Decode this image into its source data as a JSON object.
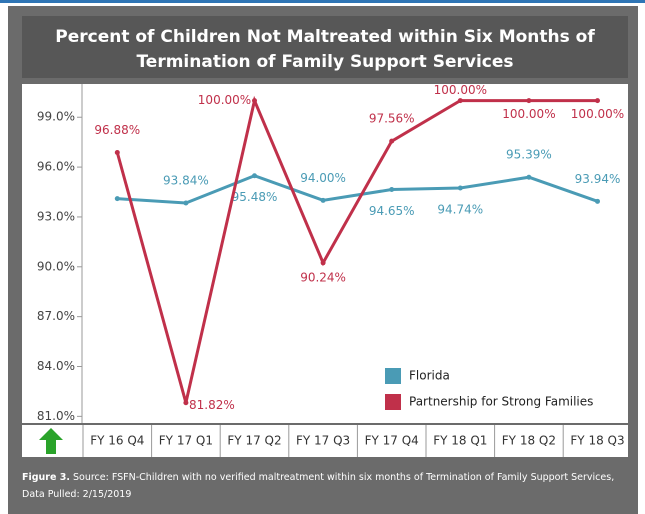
{
  "chart_data": {
    "type": "line",
    "title": [
      "Percent of Children Not Maltreated within Six Months of",
      "Termination of Family Support Services"
    ],
    "categories": [
      "FY 16 Q4",
      "FY 17 Q1",
      "FY 17 Q2",
      "FY 17 Q3",
      "FY 17 Q4",
      "FY 18 Q1",
      "FY 18 Q2",
      "FY 18 Q3"
    ],
    "series": [
      {
        "name": "Florida",
        "color": "#4a9bb5",
        "values": [
          94.1,
          93.84,
          95.48,
          94.0,
          94.65,
          94.74,
          95.39,
          93.94
        ],
        "value_labels": [
          null,
          "93.84%",
          "95.48%",
          "94.00%",
          "94.65%",
          "94.74%",
          "95.39%",
          "93.94%"
        ]
      },
      {
        "name": "Partnership for Strong Families",
        "color": "#c0304a",
        "values": [
          96.88,
          81.82,
          100,
          90.24,
          97.56,
          100,
          100,
          100
        ],
        "value_labels": [
          "96.88%",
          "81.82%",
          "100.00%",
          "90.24%",
          "97.56%",
          "100.00%",
          "100.00%",
          "100.00%"
        ]
      }
    ],
    "ylim": [
      80.6,
      101.0
    ],
    "yticks": [
      {
        "value": 81,
        "label": "81.0%"
      },
      {
        "value": 84,
        "label": "84.0%"
      },
      {
        "value": 87,
        "label": "87.0%"
      },
      {
        "value": 90,
        "label": "90.0%"
      },
      {
        "value": 93,
        "label": "93.0%"
      },
      {
        "value": 96,
        "label": "96.0%"
      },
      {
        "value": 99,
        "label": "99.0%"
      }
    ],
    "legend": "lower right",
    "figure_label": "Figure 3.",
    "source": "Source: FSFN-Children with no verified maltreatment within six months of Termination of Family Support Services, Data Pulled: 2/15/2019"
  }
}
